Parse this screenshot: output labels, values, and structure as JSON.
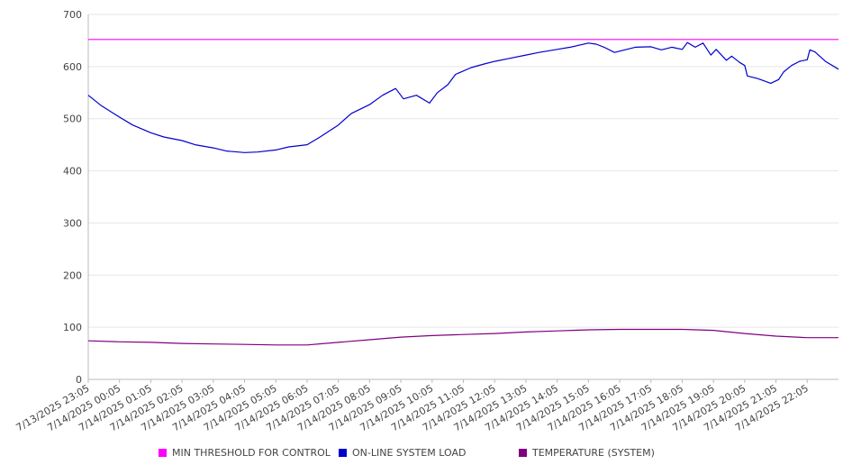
{
  "chart_data": {
    "type": "line",
    "title": "",
    "xlabel": "",
    "ylabel": "",
    "ylim": [
      0,
      700
    ],
    "yticks": [
      0,
      100,
      200,
      300,
      400,
      500,
      600,
      700
    ],
    "grid": true,
    "legend_position": "bottom",
    "x_tick_labels": [
      "7/13/2025 23:05",
      "7/14/2025 00:05",
      "7/14/2025 01:05",
      "7/14/2025 02:05",
      "7/14/2025 03:05",
      "7/14/2025 04:05",
      "7/14/2025 05:05",
      "7/14/2025 06:05",
      "7/14/2025 07:05",
      "7/14/2025 08:05",
      "7/14/2025 09:05",
      "7/14/2025 10:05",
      "7/14/2025 11:05",
      "7/14/2025 12:05",
      "7/14/2025 13:05",
      "7/14/2025 14:05",
      "7/14/2025 15:05",
      "7/14/2025 16:05",
      "7/14/2025 17:05",
      "7/14/2025 18:05",
      "7/14/2025 19:05",
      "7/14/2025 20:05",
      "7/14/2025 21:05",
      "7/14/2025 22:05"
    ],
    "x_start": "7/13/2025 23:05",
    "x_end": "7/14/2025 23:05",
    "series": [
      {
        "name": "MIN THRESHOLD FOR CONTROL",
        "color": "#ff00ff",
        "points": [
          [
            "7/13/2025 23:05",
            652
          ],
          [
            "7/14/2025 23:05",
            652
          ]
        ]
      },
      {
        "name": "ON-LINE SYSTEM LOAD",
        "color": "#0000cc",
        "points": [
          [
            "7/13/2025 23:05",
            545
          ],
          [
            "7/13/2025 23:30",
            525
          ],
          [
            "7/14/2025 00:05",
            503
          ],
          [
            "7/14/2025 00:30",
            488
          ],
          [
            "7/14/2025 01:05",
            473
          ],
          [
            "7/14/2025 01:30",
            465
          ],
          [
            "7/14/2025 02:05",
            458
          ],
          [
            "7/14/2025 02:30",
            450
          ],
          [
            "7/14/2025 03:05",
            444
          ],
          [
            "7/14/2025 03:30",
            438
          ],
          [
            "7/14/2025 04:05",
            435
          ],
          [
            "7/14/2025 04:30",
            436
          ],
          [
            "7/14/2025 05:05",
            440
          ],
          [
            "7/14/2025 05:30",
            446
          ],
          [
            "7/14/2025 06:05",
            450
          ],
          [
            "7/14/2025 06:30",
            465
          ],
          [
            "7/14/2025 07:05",
            488
          ],
          [
            "7/14/2025 07:30",
            510
          ],
          [
            "7/14/2025 08:05",
            527
          ],
          [
            "7/14/2025 08:30",
            545
          ],
          [
            "7/14/2025 08:55",
            558
          ],
          [
            "7/14/2025 09:10",
            538
          ],
          [
            "7/14/2025 09:35",
            545
          ],
          [
            "7/14/2025 10:00",
            530
          ],
          [
            "7/14/2025 10:15",
            550
          ],
          [
            "7/14/2025 10:35",
            565
          ],
          [
            "7/14/2025 10:50",
            585
          ],
          [
            "7/14/2025 11:20",
            598
          ],
          [
            "7/14/2025 11:45",
            605
          ],
          [
            "7/14/2025 12:05",
            610
          ],
          [
            "7/14/2025 12:30",
            615
          ],
          [
            "7/14/2025 13:05",
            622
          ],
          [
            "7/14/2025 13:30",
            627
          ],
          [
            "7/14/2025 14:05",
            633
          ],
          [
            "7/14/2025 14:30",
            637
          ],
          [
            "7/14/2025 15:05",
            645
          ],
          [
            "7/14/2025 15:20",
            643
          ],
          [
            "7/14/2025 15:35",
            637
          ],
          [
            "7/14/2025 15:55",
            627
          ],
          [
            "7/14/2025 16:15",
            632
          ],
          [
            "7/14/2025 16:35",
            637
          ],
          [
            "7/14/2025 17:05",
            638
          ],
          [
            "7/14/2025 17:25",
            632
          ],
          [
            "7/14/2025 17:45",
            637
          ],
          [
            "7/14/2025 18:05",
            633
          ],
          [
            "7/14/2025 18:15",
            646
          ],
          [
            "7/14/2025 18:30",
            637
          ],
          [
            "7/14/2025 18:45",
            645
          ],
          [
            "7/14/2025 19:00",
            622
          ],
          [
            "7/14/2025 19:10",
            633
          ],
          [
            "7/14/2025 19:30",
            612
          ],
          [
            "7/14/2025 19:40",
            620
          ],
          [
            "7/14/2025 19:55",
            608
          ],
          [
            "7/14/2025 20:05",
            602
          ],
          [
            "7/14/2025 20:10",
            582
          ],
          [
            "7/14/2025 20:30",
            577
          ],
          [
            "7/14/2025 20:55",
            568
          ],
          [
            "7/14/2025 21:10",
            575
          ],
          [
            "7/14/2025 21:20",
            590
          ],
          [
            "7/14/2025 21:35",
            602
          ],
          [
            "7/14/2025 21:50",
            610
          ],
          [
            "7/14/2025 22:05",
            613
          ],
          [
            "7/14/2025 22:10",
            632
          ],
          [
            "7/14/2025 22:20",
            628
          ],
          [
            "7/14/2025 22:40",
            610
          ],
          [
            "7/14/2025 23:05",
            595
          ]
        ]
      },
      {
        "name": "TEMPERATURE (SYSTEM)",
        "color": "#800080",
        "points": [
          [
            "7/13/2025 23:05",
            74
          ],
          [
            "7/14/2025 00:05",
            72
          ],
          [
            "7/14/2025 01:05",
            71
          ],
          [
            "7/14/2025 02:05",
            69
          ],
          [
            "7/14/2025 03:05",
            68
          ],
          [
            "7/14/2025 04:05",
            67
          ],
          [
            "7/14/2025 05:05",
            66
          ],
          [
            "7/14/2025 06:05",
            66
          ],
          [
            "7/14/2025 07:05",
            71
          ],
          [
            "7/14/2025 08:05",
            76
          ],
          [
            "7/14/2025 09:05",
            81
          ],
          [
            "7/14/2025 10:05",
            84
          ],
          [
            "7/14/2025 11:05",
            86
          ],
          [
            "7/14/2025 12:05",
            88
          ],
          [
            "7/14/2025 13:05",
            91
          ],
          [
            "7/14/2025 14:05",
            93
          ],
          [
            "7/14/2025 15:05",
            95
          ],
          [
            "7/14/2025 16:05",
            96
          ],
          [
            "7/14/2025 17:05",
            96
          ],
          [
            "7/14/2025 18:05",
            96
          ],
          [
            "7/14/2025 19:05",
            94
          ],
          [
            "7/14/2025 20:05",
            88
          ],
          [
            "7/14/2025 21:05",
            83
          ],
          [
            "7/14/2025 22:05",
            80
          ],
          [
            "7/14/2025 23:05",
            80
          ]
        ]
      }
    ]
  }
}
